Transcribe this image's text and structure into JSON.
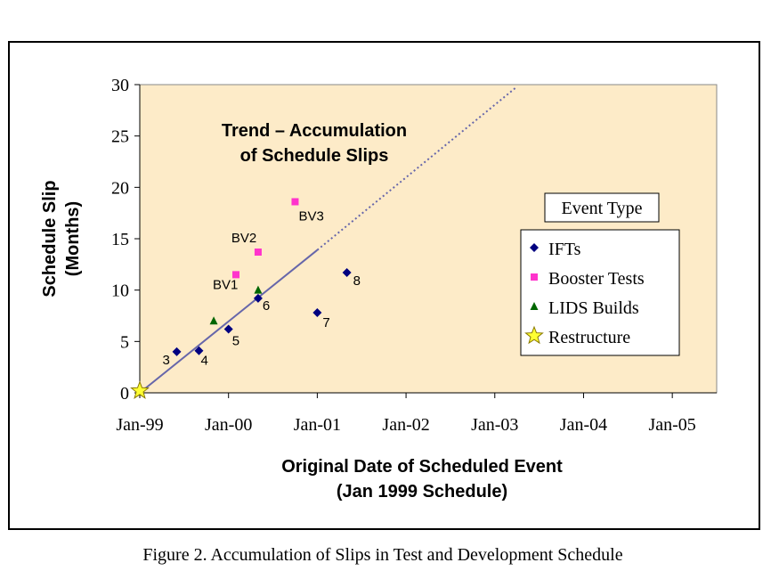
{
  "caption": "Figure 2.  Accumulation of Slips in Test and Development Schedule",
  "colors": {
    "plot_bg": "#fdebc8",
    "ifts": "#000080",
    "booster": "#ff33cc",
    "lids": "#006600",
    "restructure": "#ffff33",
    "trend": "#6666aa"
  },
  "chart_data": {
    "type": "scatter",
    "title": "Trend – Accumulation of Schedule Slips",
    "title_lines": [
      "Trend – Accumulation",
      "of Schedule Slips"
    ],
    "xlabel": "Original Date of Scheduled Event",
    "xlabel_sub": "(Jan 1999 Schedule)",
    "ylabel": "Schedule Slip",
    "ylabel_sub": "(Months)",
    "x_ticks": [
      "Jan-99",
      "Jan-00",
      "Jan-01",
      "Jan-02",
      "Jan-03",
      "Jan-04",
      "Jan-05"
    ],
    "xlim": [
      "1999-01",
      "2005-07"
    ],
    "ylim": [
      0,
      30
    ],
    "y_ticks": [
      0,
      5,
      10,
      15,
      20,
      25,
      30
    ],
    "legend_title": "Event Type",
    "legend_position": "right",
    "grid": false,
    "series": [
      {
        "name": "IFTs",
        "marker": "diamond",
        "points": [
          {
            "x": "1999-06",
            "y": 4.0,
            "label": "3"
          },
          {
            "x": "1999-09",
            "y": 4.1,
            "label": "4"
          },
          {
            "x": "2000-01",
            "y": 6.2,
            "label": "5"
          },
          {
            "x": "2000-05",
            "y": 9.2,
            "label": "6"
          },
          {
            "x": "2001-01",
            "y": 7.8,
            "label": "7"
          },
          {
            "x": "2001-05",
            "y": 11.7,
            "label": "8"
          }
        ]
      },
      {
        "name": "Booster Tests",
        "marker": "square",
        "points": [
          {
            "x": "2000-02",
            "y": 11.5,
            "label": "BV1"
          },
          {
            "x": "2000-05",
            "y": 13.7,
            "label": "BV2"
          },
          {
            "x": "2000-10",
            "y": 18.6,
            "label": "BV3"
          }
        ]
      },
      {
        "name": "LIDS Builds",
        "marker": "triangle",
        "points": [
          {
            "x": "1999-11",
            "y": 7.0
          },
          {
            "x": "2000-05",
            "y": 10.0
          }
        ]
      },
      {
        "name": "Restructure",
        "marker": "star",
        "points": [
          {
            "x": "1999-01",
            "y": 0.2
          }
        ]
      }
    ],
    "trend": {
      "from": {
        "x": "1999-01",
        "y": 0
      },
      "solid_to": {
        "x": "2001-01",
        "y": 13.9
      },
      "dotted_to": {
        "x": "2003-04",
        "y": 29.8
      }
    }
  }
}
